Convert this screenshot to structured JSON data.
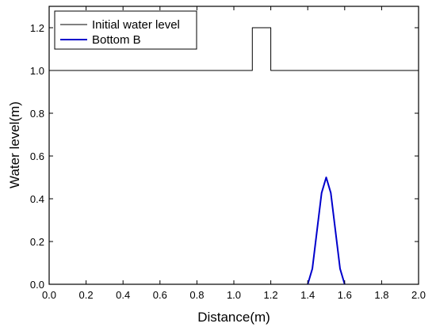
{
  "chart_data": {
    "type": "line",
    "title": "",
    "xlabel": "Distance(m)",
    "ylabel": "Water level(m)",
    "xlim": [
      0.0,
      2.0
    ],
    "ylim": [
      0.0,
      1.3
    ],
    "grid": false,
    "legend_position": "top-left",
    "x_ticks": [
      "0.0",
      "0.2",
      "0.4",
      "0.6",
      "0.8",
      "1.0",
      "1.2",
      "1.4",
      "1.6",
      "1.8",
      "2.0"
    ],
    "y_ticks": [
      "0.0",
      "0.2",
      "0.4",
      "0.6",
      "0.8",
      "1.0",
      "1.2"
    ],
    "series": [
      {
        "name": "Initial water level",
        "color": "#000000",
        "x": [
          0.0,
          1.1,
          1.1,
          1.2,
          1.2,
          2.0
        ],
        "y": [
          1.0,
          1.0,
          1.2,
          1.2,
          1.0,
          1.0
        ]
      },
      {
        "name": "Bottom B",
        "color": "#0000cc",
        "x": [
          1.4,
          1.425,
          1.45,
          1.475,
          1.5,
          1.525,
          1.55,
          1.575,
          1.6
        ],
        "y": [
          0.0,
          0.073,
          0.25,
          0.427,
          0.5,
          0.427,
          0.25,
          0.073,
          0.0
        ]
      }
    ]
  }
}
